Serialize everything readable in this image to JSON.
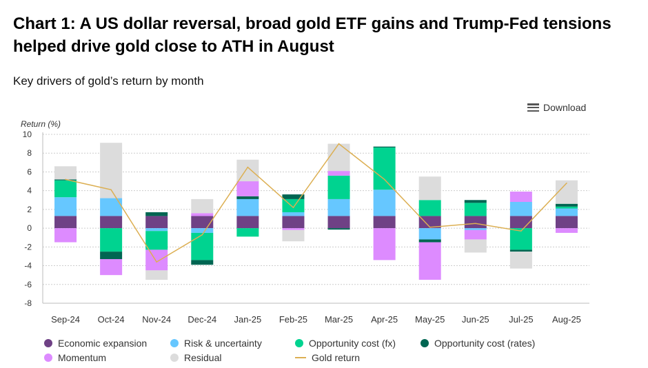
{
  "title": "Chart 1: A US dollar reversal, broad gold ETF gains and Trump-Fed tensions helped drive gold close to ATH in August",
  "subtitle": "Key drivers of gold’s return by month",
  "download_label": "Download",
  "download_icon": "menu-icon",
  "chart_data": {
    "type": "bar",
    "stacked": true,
    "ylabel": "Return (%)",
    "ylim": [
      -8,
      10
    ],
    "yticks": [
      10,
      8,
      6,
      4,
      2,
      0,
      -2,
      -4,
      -6,
      -8
    ],
    "grid": true,
    "legend_placement": "bottom",
    "categories": [
      "Sep-24",
      "Oct-24",
      "Nov-24",
      "Dec-24",
      "Jan-25",
      "Feb-25",
      "Mar-25",
      "Apr-25",
      "May-25",
      "Jun-25",
      "Jul-25",
      "Aug-25"
    ],
    "series": [
      {
        "name": "Economic expansion",
        "color": "#6f4185",
        "values": [
          1.3,
          1.3,
          1.3,
          1.3,
          1.3,
          1.3,
          1.3,
          1.3,
          1.3,
          1.3,
          1.3,
          1.3
        ]
      },
      {
        "name": "Risk & uncertainty",
        "color": "#66c7ff",
        "values": [
          2.0,
          1.9,
          -0.3,
          -0.5,
          1.8,
          0.4,
          1.8,
          2.8,
          -1.2,
          -0.2,
          1.5,
          0.8
        ]
      },
      {
        "name": "Opportunity cost (fx)",
        "color": "#00d390",
        "values": [
          1.8,
          -2.5,
          -2.0,
          -2.9,
          -0.9,
          1.4,
          2.5,
          4.5,
          1.7,
          1.4,
          -2.3,
          0.2
        ]
      },
      {
        "name": "Opportunity cost (rates)",
        "color": "#006652",
        "values": [
          0.1,
          -0.8,
          0.4,
          -0.5,
          0.3,
          0.5,
          -0.15,
          0.1,
          -0.3,
          0.3,
          -0.2,
          0.3
        ]
      },
      {
        "name": "Momentum",
        "color": "#dd8bff",
        "values": [
          -1.5,
          -1.7,
          -2.2,
          0.3,
          1.6,
          -0.2,
          0.5,
          -3.4,
          -4.0,
          -1.0,
          1.1,
          -0.5
        ]
      },
      {
        "name": "Residual",
        "color": "#dcdcdc",
        "values": [
          1.4,
          5.9,
          -1.0,
          1.5,
          2.3,
          -1.2,
          2.9,
          0.0,
          2.5,
          -1.4,
          -1.8,
          2.5
        ]
      }
    ],
    "line": {
      "name": "Gold return",
      "color": "#dcaf52",
      "values": [
        5.2,
        4.1,
        -3.6,
        -0.7,
        6.5,
        2.2,
        9.0,
        5.2,
        0.1,
        0.5,
        -0.3,
        4.8
      ]
    }
  }
}
